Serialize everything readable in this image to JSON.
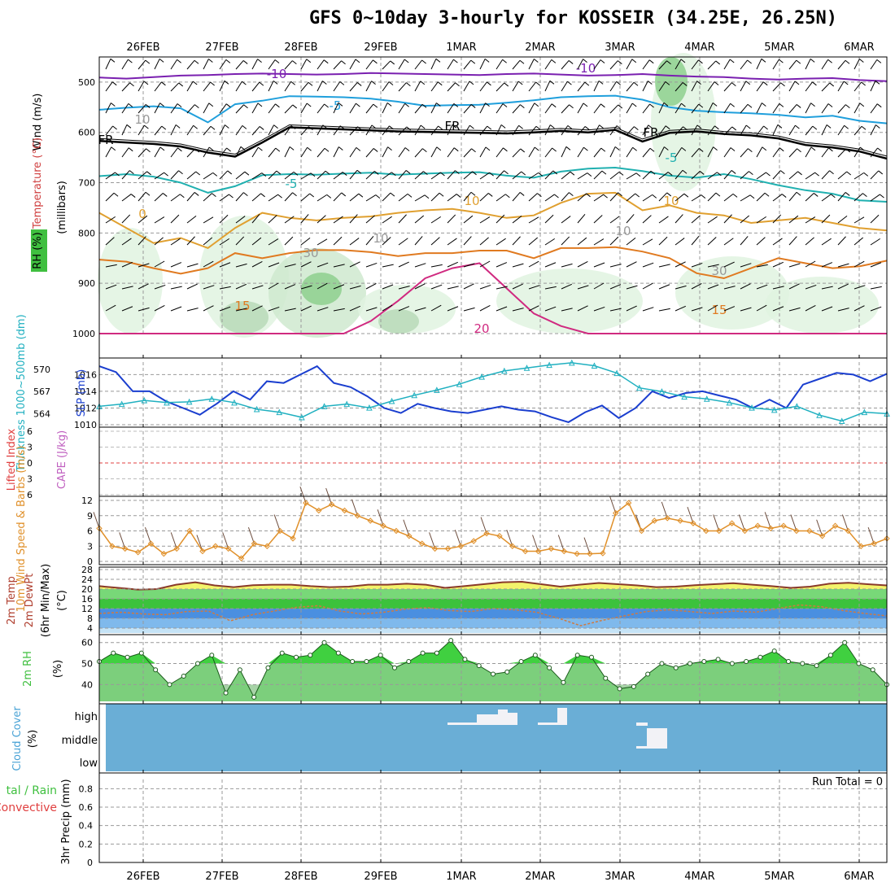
{
  "title": "GFS 0~10day 3-hourly for KOSSEIR (34.25E, 26.25N)",
  "dates": [
    "26FEB",
    "27FEB",
    "28FEB",
    "29FEB",
    "1MAR",
    "2MAR",
    "3MAR",
    "4MAR",
    "5MAR",
    "6MAR"
  ],
  "colors": {
    "rh": "#3fbf3f",
    "temp": "#e06030",
    "wind": "#000000",
    "thickness": "#20b0c0",
    "slp": "#1a3ecf",
    "lifted": "#e04040",
    "cape": "#c060c0",
    "wind10": "#e0902a",
    "temp2m": "#8a3a2a",
    "rh2m_fill": "#7ccf7c",
    "cloud": "#6aaed6",
    "precip_total": "#40c040",
    "precip_conv": "#e04040"
  },
  "chart_data": [
    {
      "type": "contour",
      "panel": "upper_air",
      "ylabel_parts": [
        "Wind (m/s)",
        "Temperature (°C)",
        "RH (%)"
      ],
      "ylabel_units": "(millibars)",
      "yticks": [
        500,
        600,
        700,
        800,
        900,
        1000
      ],
      "ylim": [
        450,
        1000
      ],
      "isotherm_labels": [
        "-10",
        "-10",
        "-5",
        "FR",
        "FR",
        "FR",
        "-5",
        "-5",
        "0",
        "10",
        "10",
        "15",
        "15",
        "20",
        "30",
        "30",
        "10",
        "10",
        "10"
      ],
      "isotherms": [
        {
          "label": "-10",
          "color": "#7a20b0",
          "levels": [
            491,
            493,
            490,
            487,
            486,
            484,
            483,
            484,
            485,
            484,
            482,
            483,
            484,
            485,
            486,
            484,
            483,
            485,
            487,
            486,
            484,
            487,
            489,
            490,
            493,
            495,
            493,
            492,
            496,
            498
          ]
        },
        {
          "label": "-5",
          "color": "#1f9fdc",
          "levels": [
            555,
            551,
            548,
            552,
            580,
            544,
            537,
            528,
            529,
            530,
            533,
            539,
            547,
            546,
            545,
            541,
            536,
            530,
            528,
            527,
            535,
            550,
            557,
            560,
            562,
            565,
            570,
            567,
            577,
            582
          ]
        },
        {
          "label": "FR",
          "color": "#000000",
          "levels": [
            617,
            620,
            623,
            628,
            640,
            648,
            620,
            590,
            592,
            594,
            596,
            598,
            599,
            600,
            601,
            602,
            600,
            597,
            600,
            595,
            618,
            601,
            598,
            603,
            606,
            612,
            625,
            630,
            638,
            652
          ]
        },
        {
          "label": "-5",
          "color": "#20b0b0",
          "levels": [
            687,
            683,
            688,
            700,
            720,
            707,
            685,
            683,
            684,
            682,
            680,
            684,
            682,
            680,
            679,
            686,
            690,
            678,
            672,
            670,
            677,
            686,
            690,
            683,
            693,
            705,
            715,
            722,
            735,
            738
          ]
        },
        {
          "label": "10",
          "color": "#e0a030",
          "levels": [
            760,
            790,
            820,
            810,
            830,
            790,
            760,
            770,
            775,
            770,
            767,
            760,
            755,
            752,
            760,
            770,
            765,
            740,
            722,
            720,
            755,
            745,
            760,
            765,
            780,
            775,
            770,
            780,
            790,
            795
          ]
        },
        {
          "label": "15",
          "color": "#e07a20",
          "levels": [
            853,
            857,
            870,
            881,
            870,
            840,
            850,
            840,
            834,
            834,
            838,
            846,
            840,
            840,
            835,
            835,
            850,
            830,
            830,
            828,
            837,
            850,
            880,
            890,
            870,
            850,
            860,
            870,
            866,
            855
          ]
        },
        {
          "label": "20",
          "color": "#d02a80",
          "levels": [
            1000,
            1000,
            1000,
            1000,
            1000,
            1000,
            1000,
            1000,
            1000,
            1000,
            975,
            935,
            890,
            870,
            860,
            910,
            960,
            985,
            1000,
            1000,
            1000,
            1000,
            1000,
            1000,
            1000,
            1000,
            1000,
            1000,
            1000,
            1000
          ]
        }
      ]
    },
    {
      "type": "line",
      "panel": "slp_thickness",
      "ylabel_left": "Thickness 1000~500mb (dm)",
      "ylabel_right": "SLP (mb)",
      "yticks_left": [
        564,
        567,
        570
      ],
      "yticks_right": [
        1010,
        1012,
        1014,
        1016
      ],
      "series": [
        {
          "name": "SLP (mb)",
          "axis": "right",
          "values": [
            1017.0,
            1016.3,
            1014.0,
            1014.0,
            1012.8,
            1012.0,
            1011.2,
            1012.5,
            1014.0,
            1013.0,
            1015.2,
            1015.0,
            1016.0,
            1017.0,
            1015.0,
            1014.5,
            1013.4,
            1012.0,
            1011.4,
            1012.5,
            1012.0,
            1011.6,
            1011.4,
            1011.8,
            1012.2,
            1011.8,
            1011.6,
            1010.9,
            1010.3,
            1011.5,
            1012.3,
            1010.8,
            1012.0,
            1014.0,
            1013.2,
            1013.8,
            1014.0,
            1013.5,
            1013.0,
            1012.0,
            1013.0,
            1012.0,
            1014.8,
            1015.5,
            1016.2,
            1016.0,
            1015.2,
            1016.1
          ]
        },
        {
          "name": "Thickness (dm)",
          "axis": "left",
          "values": [
            565.0,
            565.3,
            565.8,
            565.5,
            565.6,
            566.0,
            565.5,
            564.6,
            564.2,
            563.5,
            565.0,
            565.3,
            564.8,
            565.7,
            566.5,
            567.2,
            568.0,
            569.0,
            569.8,
            570.2,
            570.6,
            570.9,
            570.5,
            569.5,
            567.5,
            567.0,
            566.3,
            566.0,
            565.5,
            564.8,
            564.5,
            565.0,
            563.8,
            563.0,
            564.2,
            564.0
          ]
        }
      ]
    },
    {
      "type": "line",
      "panel": "stability",
      "ylabel_left": "Lifted Index",
      "ylabel_right": "CAPE (J/kg)",
      "yticks": [
        -6,
        -3,
        0,
        3,
        6
      ],
      "series": [
        {
          "name": "Lifted Index",
          "values": []
        }
      ]
    },
    {
      "type": "line",
      "panel": "wind10m",
      "ylabel": "10m Wind Speed & Barbs (m/s)",
      "yticks": [
        0,
        3,
        6,
        9,
        12
      ],
      "ylim": [
        0,
        12
      ],
      "series": [
        {
          "name": "10m Wind Speed",
          "values": [
            6.5,
            3.0,
            2.5,
            1.8,
            3.5,
            1.5,
            2.5,
            6.0,
            2.0,
            3.0,
            2.5,
            0.6,
            3.5,
            3.0,
            6.0,
            4.5,
            11.5,
            10.0,
            11.2,
            10.0,
            9.0,
            8.0,
            7.0,
            6.0,
            5.0,
            3.5,
            2.5,
            2.5,
            3.0,
            4.0,
            5.5,
            5.0,
            3.0,
            2.0,
            2.0,
            2.5,
            2.0,
            1.5,
            1.5,
            1.6,
            9.5,
            11.5,
            6.0,
            8.0,
            8.5,
            8.0,
            7.5,
            6.0,
            6.0,
            7.5,
            6.0,
            7.0,
            6.5,
            7.0,
            6.0,
            6.0,
            5.0,
            7.0,
            6.0,
            3.0,
            3.5,
            4.5
          ]
        }
      ]
    },
    {
      "type": "area",
      "panel": "temp2m",
      "ylabel": "2m Temp 2m DewPt (6hr Min/Max) (°C)",
      "yticks": [
        4,
        8,
        12,
        16,
        20,
        24,
        28
      ],
      "ylim": [
        2,
        28
      ],
      "series": [
        {
          "name": "2m Temp",
          "values": [
            21.2,
            20.5,
            19.8,
            20.0,
            21.8,
            22.8,
            21.5,
            20.8,
            21.6,
            21.8,
            21.8,
            21.2,
            20.8,
            21.0,
            21.8,
            21.8,
            22.2,
            21.8,
            20.5,
            21.2,
            22.0,
            22.8,
            23.0,
            22.0,
            21.0,
            21.8,
            22.5,
            22.0,
            21.5,
            20.8,
            21.0,
            21.6,
            22.0,
            22.4,
            21.8,
            21.2,
            20.5,
            21.0,
            22.2,
            22.6,
            22.0,
            21.5
          ]
        },
        {
          "name": "2m DewPt",
          "values": [
            10.0,
            10.5,
            9.8,
            9.5,
            10.8,
            11.0,
            7.0,
            9.5,
            11.0,
            12.5,
            13.2,
            11.0,
            9.8,
            10.5,
            11.8,
            12.4,
            11.2,
            10.8,
            12.0,
            11.5,
            10.5,
            8.0,
            5.0,
            7.2,
            9.0,
            10.8,
            11.5,
            10.8,
            10.0,
            11.0,
            10.5,
            12.0,
            13.5,
            12.8,
            11.2,
            10.0,
            9.0
          ]
        }
      ]
    },
    {
      "type": "area",
      "panel": "rh2m",
      "ylabel": "2m RH (%)",
      "yticks": [
        40,
        50,
        60
      ],
      "ylim": [
        32,
        63
      ],
      "series": [
        {
          "name": "2m RH",
          "values": [
            51,
            55,
            53,
            55,
            47,
            40,
            44,
            50,
            54,
            36,
            47,
            34,
            48,
            55,
            53,
            54,
            60,
            55,
            51,
            51,
            54,
            48,
            51,
            55,
            55,
            61,
            52,
            49,
            45,
            46,
            51,
            54,
            48,
            41,
            54,
            53,
            43,
            38,
            39,
            45,
            50,
            48,
            50,
            51,
            52,
            50,
            51,
            53,
            56,
            51,
            50,
            49,
            54,
            60,
            50,
            47,
            40
          ]
        }
      ]
    },
    {
      "type": "bar",
      "panel": "cloud",
      "ylabel": "Cloud Cover (%)",
      "categories": [
        "high",
        "middle",
        "low"
      ]
    },
    {
      "type": "bar",
      "panel": "precip",
      "ylabel": "3hr Precip (mm)",
      "ylabel_left": "Total / Rain Convective",
      "yticks": [
        0,
        0.2,
        0.4,
        0.6,
        0.8
      ],
      "ylim": [
        0,
        0.9
      ],
      "run_total_label": "Run Total = 0",
      "values": []
    }
  ],
  "labels": {
    "panel1_wind": "Wind (m/s)",
    "panel1_temp": "Temperature (°C)",
    "panel1_rh": "RH (%)",
    "panel1_mb": "(millibars)",
    "thickness": "Thickness 1000~500mb (dm)",
    "slp": "SLP (mb)",
    "lifted": "Lifted Index",
    "cape": "CAPE (J/kg)",
    "wind10": "10m Wind Speed & Barbs (m/s)",
    "temp2m_a": "2m Temp",
    "temp2m_b": "2m DewPt",
    "temp2m_c": "(6hr Min/Max)",
    "temp2m_d": "(°C)",
    "rh2m": "2m RH",
    "rh2m_unit": "(%)",
    "cloud_a": "Cloud Cover",
    "cloud_b": "(%)",
    "precip": "3hr Precip (mm)",
    "precip_total": "tal / Rain",
    "precip_conv": "Convective",
    "run_total": "Run Total = 0"
  }
}
